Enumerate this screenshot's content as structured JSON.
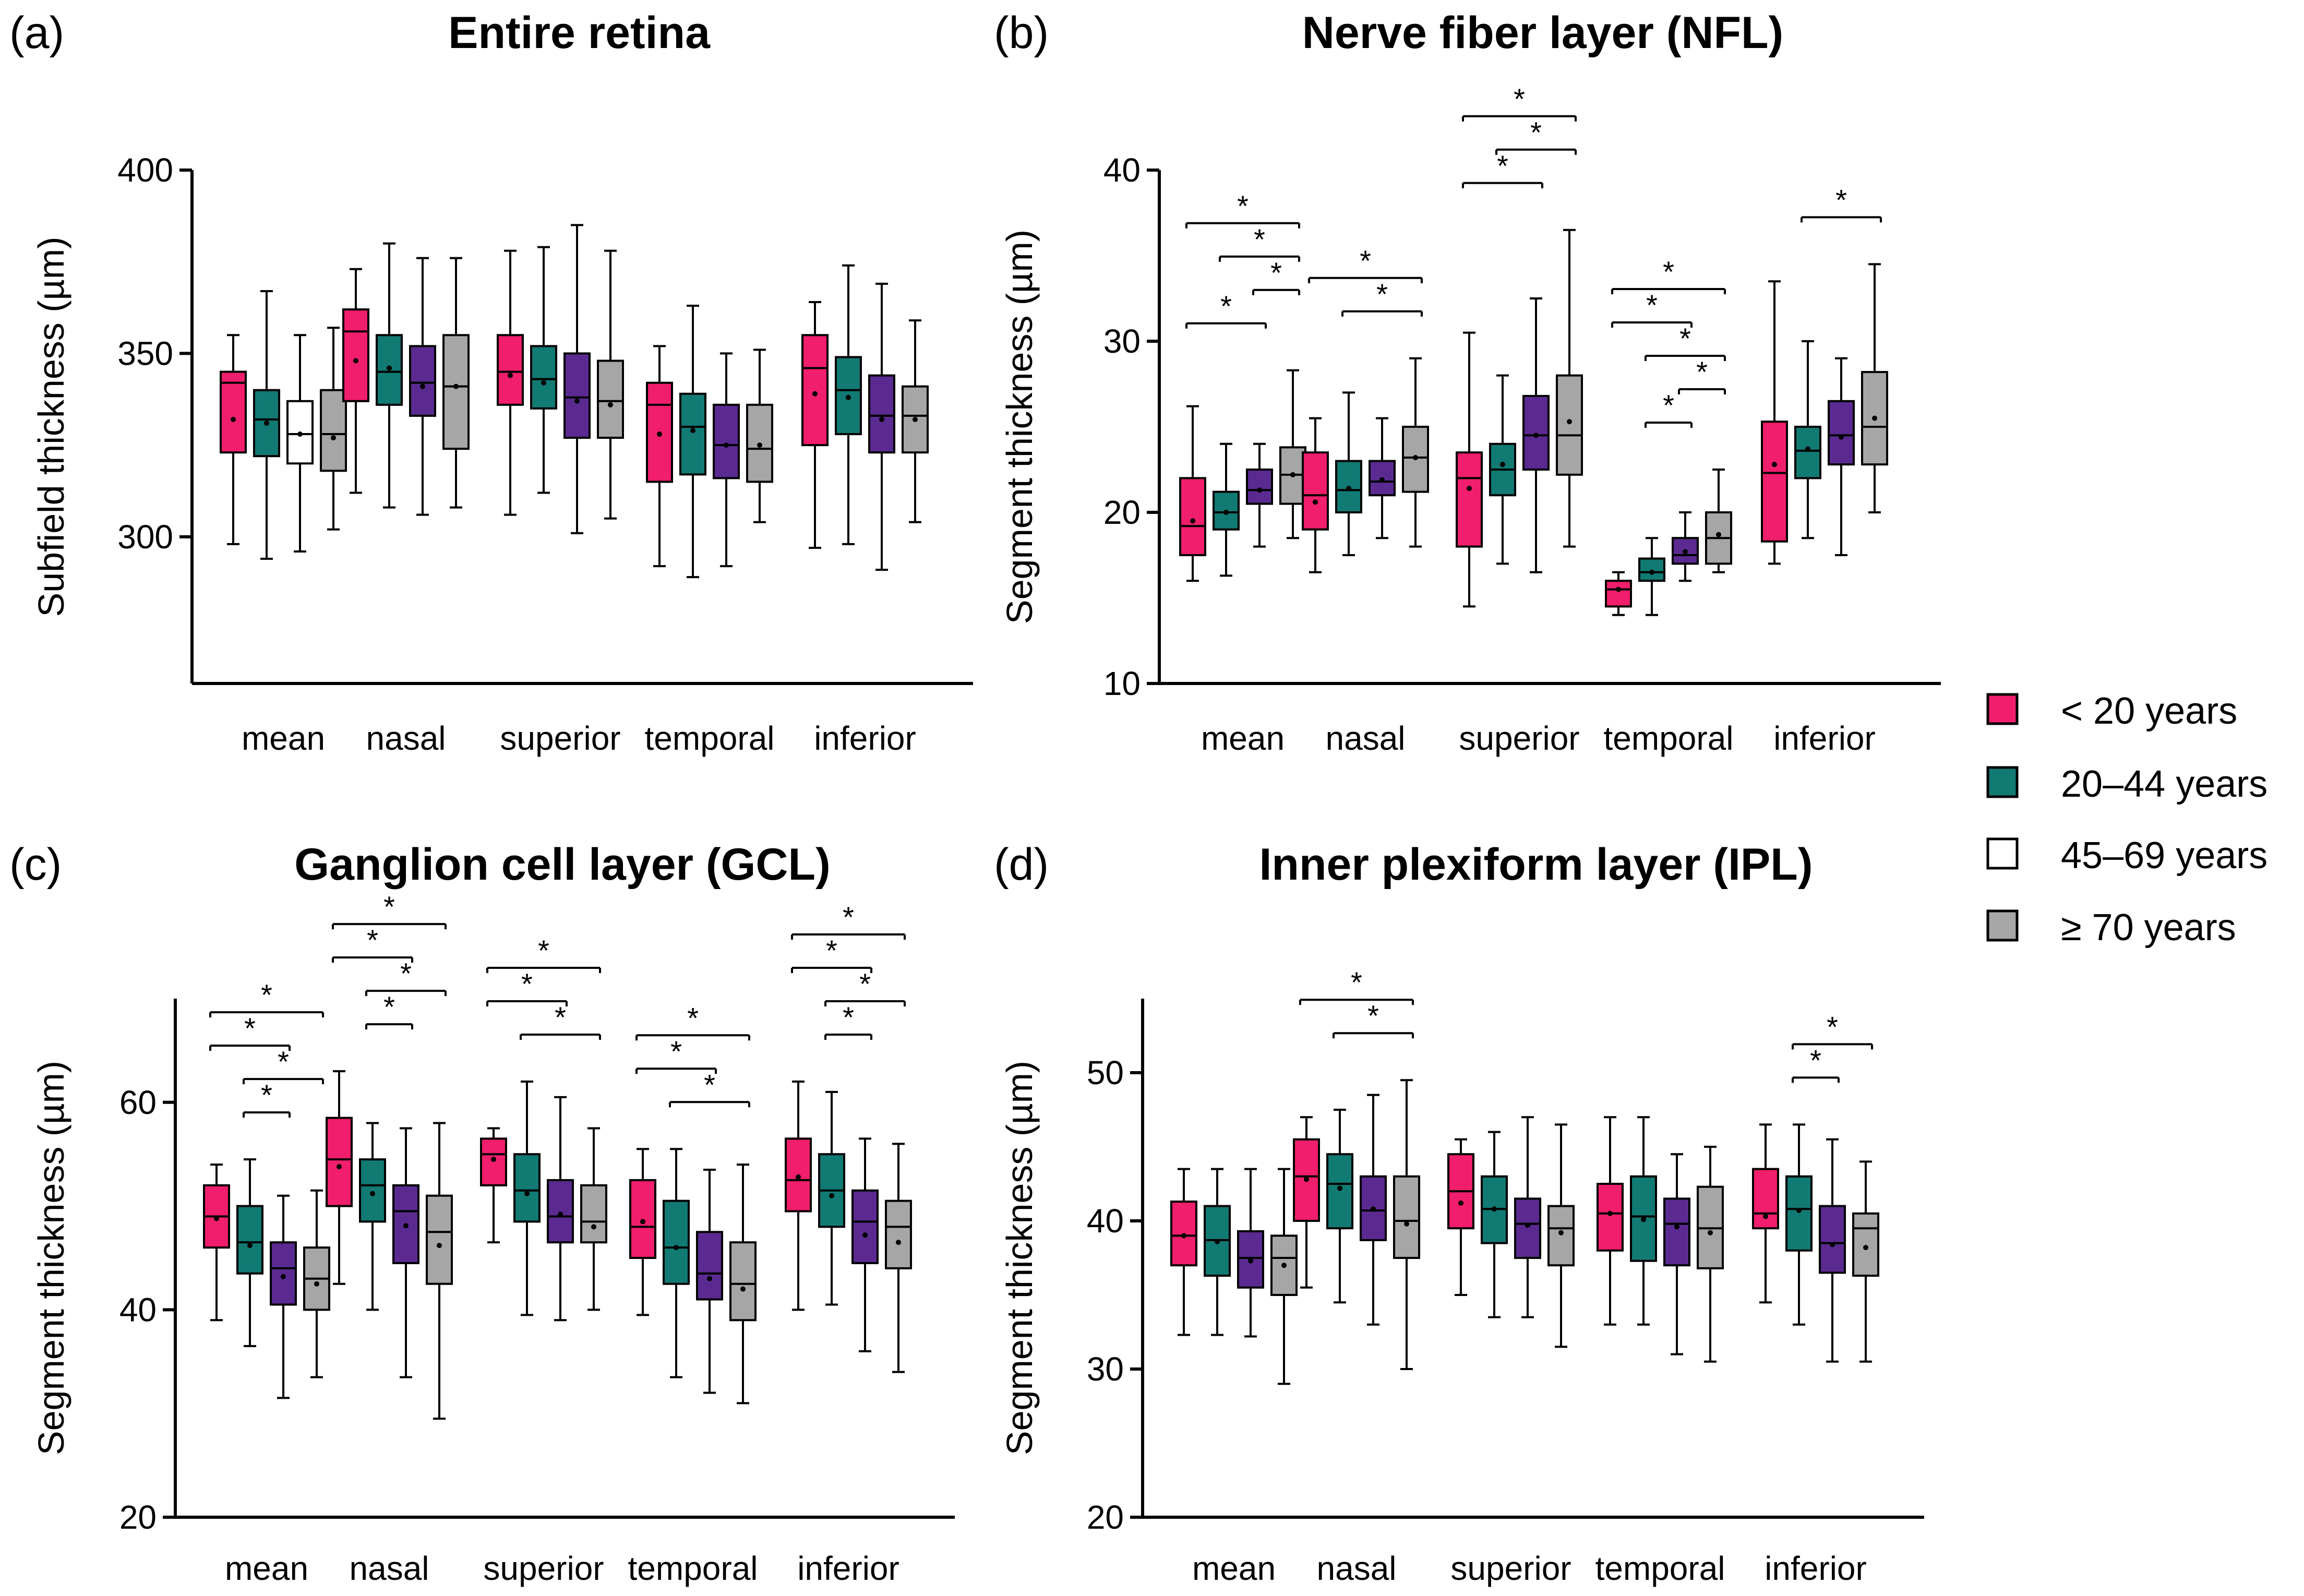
{
  "legend": [
    {
      "label": "< 20 years",
      "color": "#F01E6C"
    },
    {
      "label": "20–44 years",
      "color": "#117A73"
    },
    {
      "label": "45–69 years",
      "color": "#FFFFFF"
    },
    {
      "label": "≥ 70 years",
      "color": "#A6A6A6"
    }
  ],
  "chart_data": [
    {
      "type": "box",
      "panel_label": "(a)",
      "title": "Entire retina",
      "ylabel": "Subfield thickness (µm)",
      "ylim": [
        260,
        400
      ],
      "yticks": [
        300,
        350,
        400
      ],
      "categories": [
        "mean",
        "nasal",
        "superior",
        "temporal",
        "inferior"
      ],
      "series_colors": [
        "#F01E6C",
        "#117A73",
        "#FFFFFF",
        "#A6A6A6"
      ],
      "boxes": [
        [
          [
            298,
            323,
            342,
            345,
            355,
            332
          ],
          [
            294,
            322,
            332,
            340,
            367,
            331
          ],
          [
            296,
            320,
            328,
            337,
            355,
            328
          ],
          [
            302,
            318,
            328,
            340,
            357,
            327
          ]
        ],
        [
          [
            312,
            337,
            356,
            362,
            373,
            348
          ],
          [
            308,
            336,
            345,
            355,
            380,
            346
          ],
          [
            306,
            333,
            342,
            352,
            376,
            341
          ],
          [
            308,
            324,
            341,
            355,
            376,
            341
          ]
        ],
        [
          [
            306,
            336,
            345,
            355,
            378,
            344
          ],
          [
            312,
            335,
            343,
            352,
            379,
            342
          ],
          [
            301,
            327,
            338,
            350,
            385,
            337
          ],
          [
            305,
            327,
            337,
            348,
            378,
            336
          ]
        ],
        [
          [
            292,
            315,
            336,
            342,
            352,
            328
          ],
          [
            289,
            317,
            330,
            339,
            363,
            329
          ],
          [
            292,
            316,
            325,
            336,
            350,
            325
          ],
          [
            304,
            315,
            324,
            336,
            351,
            325
          ]
        ],
        [
          [
            297,
            325,
            346,
            355,
            364,
            339
          ],
          [
            298,
            328,
            340,
            349,
            374,
            338
          ],
          [
            291,
            323,
            333,
            344,
            369,
            332
          ],
          [
            304,
            323,
            333,
            341,
            359,
            332
          ]
        ]
      ],
      "box_colors_override": {
        "0": [
          "#F01E6C",
          "#117A73",
          "#FFFFFF",
          "#A6A6A6"
        ],
        "1": [
          "#F01E6C",
          "#117A73",
          "#5B2A91",
          "#A6A6A6"
        ],
        "2": [
          "#F01E6C",
          "#117A73",
          "#5B2A91",
          "#A6A6A6"
        ],
        "3": [
          "#F01E6C",
          "#117A73",
          "#5B2A91",
          "#A6A6A6"
        ],
        "4": [
          "#F01E6C",
          "#117A73",
          "#5B2A91",
          "#A6A6A6"
        ]
      },
      "sig": []
    },
    {
      "type": "box",
      "panel_label": "(b)",
      "title": "Nerve fiber layer (NFL)",
      "ylabel": "Segment thickness (µm)",
      "ylim": [
        10,
        40
      ],
      "yticks": [
        10,
        20,
        30,
        40
      ],
      "categories": [
        "mean",
        "nasal",
        "superior",
        "temporal",
        "inferior"
      ],
      "series_colors": [
        "#F01E6C",
        "#117A73",
        "#5B2A91",
        "#A6A6A6"
      ],
      "boxes": [
        [
          [
            16.0,
            17.5,
            19.2,
            22.0,
            26.2,
            19.5
          ],
          [
            16.3,
            19.0,
            20.0,
            21.2,
            24.0,
            20.0
          ],
          [
            18.0,
            20.5,
            21.3,
            22.5,
            24.0,
            21.3
          ],
          [
            18.5,
            20.5,
            22.2,
            23.8,
            28.3,
            22.2
          ]
        ],
        [
          [
            16.5,
            19.0,
            21.0,
            23.5,
            25.5,
            20.6
          ],
          [
            17.5,
            20.0,
            21.3,
            23.0,
            27.0,
            21.4
          ],
          [
            18.5,
            21.0,
            21.8,
            23.0,
            25.5,
            21.9
          ],
          [
            18.0,
            21.2,
            23.2,
            25.0,
            29.0,
            23.2
          ]
        ],
        [
          [
            14.5,
            18.0,
            22.0,
            23.5,
            30.5,
            21.4
          ],
          [
            17.0,
            21.0,
            22.5,
            24.0,
            28.0,
            22.8
          ],
          [
            16.5,
            22.5,
            24.5,
            26.8,
            32.5,
            24.5
          ],
          [
            18.0,
            22.2,
            24.5,
            28.0,
            36.5,
            25.3
          ]
        ],
        [
          [
            14.0,
            14.5,
            15.5,
            16.0,
            16.5,
            15.5
          ],
          [
            14.0,
            16.0,
            16.5,
            17.3,
            18.5,
            16.5
          ],
          [
            16.0,
            17.0,
            17.5,
            18.5,
            20.0,
            17.7
          ],
          [
            16.5,
            17.0,
            18.5,
            20.0,
            22.5,
            18.7
          ]
        ],
        [
          [
            17.0,
            18.3,
            22.3,
            25.3,
            33.5,
            22.8
          ],
          [
            18.5,
            22.0,
            23.6,
            25.0,
            30.0,
            23.7
          ],
          [
            17.5,
            22.8,
            24.5,
            26.5,
            29.0,
            24.4
          ],
          [
            20.0,
            22.8,
            25.0,
            28.2,
            34.5,
            25.5
          ]
        ]
      ],
      "sig": [
        {
          "cat": 0,
          "from": 0,
          "to": 3,
          "level": 0,
          "label": "*"
        },
        {
          "cat": 0,
          "from": 1,
          "to": 3,
          "level": 1,
          "label": "*"
        },
        {
          "cat": 0,
          "from": 2,
          "to": 3,
          "level": 2,
          "label": "*"
        },
        {
          "cat": 0,
          "from": 0,
          "to": 2,
          "level": 3,
          "label": "*"
        },
        {
          "cat": 1,
          "from": 0,
          "to": 3,
          "level": 0,
          "label": "*"
        },
        {
          "cat": 1,
          "from": 1,
          "to": 3,
          "level": 1,
          "label": "*"
        },
        {
          "cat": 2,
          "from": 0,
          "to": 3,
          "level": 0,
          "label": "*"
        },
        {
          "cat": 2,
          "from": 1,
          "to": 3,
          "level": 1,
          "label": "*"
        },
        {
          "cat": 2,
          "from": 0,
          "to": 2,
          "level": 2,
          "label": "*"
        },
        {
          "cat": 3,
          "from": 0,
          "to": 3,
          "level": 0,
          "label": "*"
        },
        {
          "cat": 3,
          "from": 0,
          "to": 2,
          "level": 1,
          "label": "*"
        },
        {
          "cat": 3,
          "from": 1,
          "to": 3,
          "level": 2,
          "label": "*"
        },
        {
          "cat": 3,
          "from": 2,
          "to": 3,
          "level": 3,
          "label": "*"
        },
        {
          "cat": 3,
          "from": 1,
          "to": 2,
          "level": 4,
          "label": "*"
        },
        {
          "cat": 4,
          "from": 1,
          "to": 3,
          "level": 0,
          "label": "*"
        }
      ]
    },
    {
      "type": "box",
      "panel_label": "(c)",
      "title": "Ganglion cell layer (GCL)",
      "ylabel": "Segment thickness (µm)",
      "ylim": [
        20,
        70
      ],
      "yticks": [
        20,
        40,
        60
      ],
      "categories": [
        "mean",
        "nasal",
        "superior",
        "temporal",
        "inferior"
      ],
      "series_colors": [
        "#F01E6C",
        "#117A73",
        "#5B2A91",
        "#A6A6A6"
      ],
      "boxes": [
        [
          [
            39.0,
            46.0,
            49.0,
            52.0,
            54.0,
            48.8
          ],
          [
            36.5,
            43.5,
            46.5,
            50.0,
            54.5,
            46.2
          ],
          [
            31.5,
            40.5,
            44.0,
            46.5,
            51.0,
            43.2
          ],
          [
            33.5,
            40.0,
            43.0,
            46.0,
            51.5,
            42.5
          ]
        ],
        [
          [
            42.5,
            50.0,
            54.5,
            58.5,
            63.0,
            53.8
          ],
          [
            40.0,
            48.5,
            52.0,
            54.5,
            58.0,
            51.2
          ],
          [
            33.5,
            44.5,
            49.5,
            52.0,
            57.5,
            48.1
          ],
          [
            29.5,
            42.5,
            47.5,
            51.0,
            58.0,
            46.2
          ]
        ],
        [
          [
            46.5,
            52.0,
            55.0,
            56.5,
            57.5,
            54.5
          ],
          [
            39.5,
            48.5,
            51.5,
            55.0,
            62.0,
            51.2
          ],
          [
            39.0,
            46.5,
            49.0,
            52.5,
            60.5,
            49.2
          ],
          [
            40.0,
            46.5,
            48.5,
            52.0,
            57.5,
            48.0
          ]
        ],
        [
          [
            39.5,
            45.0,
            48.0,
            52.5,
            55.5,
            48.5
          ],
          [
            33.5,
            42.5,
            46.0,
            50.5,
            55.5,
            46.0
          ],
          [
            32.0,
            41.0,
            43.5,
            47.5,
            53.5,
            43.0
          ],
          [
            31.0,
            39.0,
            42.5,
            46.5,
            54.0,
            42.0
          ]
        ],
        [
          [
            40.0,
            49.5,
            52.5,
            56.5,
            62.0,
            52.8
          ],
          [
            40.5,
            48.0,
            51.5,
            55.0,
            61.0,
            51.0
          ],
          [
            36.0,
            44.5,
            48.5,
            51.5,
            56.5,
            47.2
          ],
          [
            34.0,
            44.0,
            48.0,
            50.5,
            56.0,
            46.5
          ]
        ]
      ],
      "sig": [
        {
          "cat": 0,
          "from": 0,
          "to": 3,
          "level": 0,
          "label": "*"
        },
        {
          "cat": 0,
          "from": 0,
          "to": 2,
          "level": 1,
          "label": "*"
        },
        {
          "cat": 0,
          "from": 1,
          "to": 3,
          "level": 2,
          "label": "*"
        },
        {
          "cat": 0,
          "from": 1,
          "to": 2,
          "level": 3,
          "label": "*"
        },
        {
          "cat": 1,
          "from": 0,
          "to": 3,
          "level": 0,
          "label": "*"
        },
        {
          "cat": 1,
          "from": 0,
          "to": 2,
          "level": 1,
          "label": "*"
        },
        {
          "cat": 1,
          "from": 1,
          "to": 3,
          "level": 2,
          "label": "*"
        },
        {
          "cat": 1,
          "from": 1,
          "to": 2,
          "level": 3,
          "label": "*"
        },
        {
          "cat": 2,
          "from": 0,
          "to": 3,
          "level": 0,
          "label": "*"
        },
        {
          "cat": 2,
          "from": 0,
          "to": 2,
          "level": 1,
          "label": "*"
        },
        {
          "cat": 2,
          "from": 1,
          "to": 3,
          "level": 2,
          "label": "*"
        },
        {
          "cat": 3,
          "from": 0,
          "to": 3,
          "level": 0,
          "label": "*"
        },
        {
          "cat": 3,
          "from": 0,
          "to": 2,
          "level": 1,
          "label": "*"
        },
        {
          "cat": 3,
          "from": 1,
          "to": 3,
          "level": 2,
          "label": "*"
        },
        {
          "cat": 4,
          "from": 0,
          "to": 3,
          "level": -1,
          "label": "*"
        },
        {
          "cat": 4,
          "from": 0,
          "to": 2,
          "level": 0,
          "label": "*"
        },
        {
          "cat": 4,
          "from": 1,
          "to": 3,
          "level": 1,
          "label": "*"
        },
        {
          "cat": 4,
          "from": 1,
          "to": 2,
          "level": 2,
          "label": "*"
        }
      ]
    },
    {
      "type": "box",
      "panel_label": "(d)",
      "title": "Inner plexiform layer (IPL)",
      "ylabel": "Segment thickness (µm)",
      "ylim": [
        20,
        55
      ],
      "yticks": [
        20,
        30,
        40,
        50
      ],
      "categories": [
        "mean",
        "nasal",
        "superior",
        "temporal",
        "inferior"
      ],
      "series_colors": [
        "#F01E6C",
        "#117A73",
        "#5B2A91",
        "#A6A6A6"
      ],
      "boxes": [
        [
          [
            32.3,
            37.0,
            39.0,
            41.3,
            43.5,
            39.0
          ],
          [
            32.3,
            36.3,
            38.7,
            41.0,
            43.5,
            38.6
          ],
          [
            32.2,
            35.5,
            37.5,
            39.3,
            43.5,
            37.3
          ],
          [
            29.0,
            35.0,
            37.5,
            39.0,
            43.5,
            37.0
          ]
        ],
        [
          [
            35.5,
            40.0,
            43.0,
            45.5,
            47.0,
            42.8
          ],
          [
            34.5,
            39.5,
            42.5,
            44.5,
            47.5,
            42.2
          ],
          [
            33.0,
            38.7,
            40.7,
            43.0,
            48.5,
            40.8
          ],
          [
            30.0,
            37.5,
            40.0,
            43.0,
            49.5,
            39.8
          ]
        ],
        [
          [
            35.0,
            39.5,
            42.0,
            44.5,
            45.5,
            41.2
          ],
          [
            33.5,
            38.5,
            40.8,
            43.0,
            46.0,
            40.8
          ],
          [
            33.5,
            37.5,
            39.8,
            41.5,
            47.0,
            39.7
          ],
          [
            31.5,
            37.0,
            39.5,
            41.0,
            46.5,
            39.2
          ]
        ],
        [
          [
            33.0,
            38.0,
            40.5,
            42.5,
            47.0,
            40.5
          ],
          [
            33.0,
            37.3,
            40.3,
            43.0,
            47.0,
            40.1
          ],
          [
            31.0,
            37.0,
            39.8,
            41.5,
            44.5,
            39.6
          ],
          [
            30.5,
            36.8,
            39.5,
            42.3,
            45.0,
            39.2
          ]
        ],
        [
          [
            34.5,
            39.5,
            40.5,
            43.5,
            46.5,
            40.3
          ],
          [
            33.0,
            38.0,
            40.8,
            43.0,
            46.5,
            40.7
          ],
          [
            30.5,
            36.5,
            38.5,
            41.0,
            45.5,
            38.4
          ],
          [
            30.5,
            36.3,
            39.5,
            40.5,
            44.0,
            38.2
          ]
        ]
      ],
      "sig": [
        {
          "cat": 1,
          "from": 0,
          "to": 3,
          "level": 0,
          "label": "*"
        },
        {
          "cat": 1,
          "from": 1,
          "to": 3,
          "level": 1,
          "label": "*"
        },
        {
          "cat": 4,
          "from": 1,
          "to": 3,
          "level": 0,
          "label": "*"
        },
        {
          "cat": 4,
          "from": 1,
          "to": 2,
          "level": 1,
          "label": "*"
        }
      ]
    }
  ]
}
